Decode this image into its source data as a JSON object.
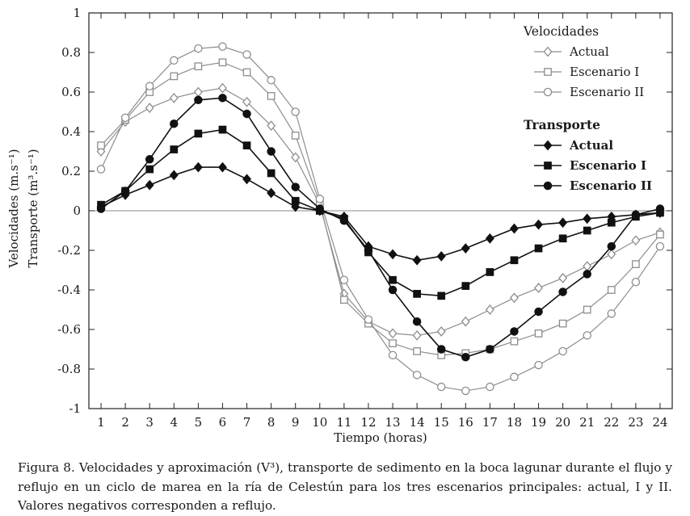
{
  "caption": "Figura 8. Velocidades y aproximación (V³), transporte de sedimento en la boca lagunar durante el flujo y reflujo en un ciclo de marea en la ría de Celestún para los tres escenarios principales: actual, I y II. Valores negativos corresponden a reflujo.",
  "chart_data": {
    "type": "line",
    "title": "",
    "xlabel": "Tiempo (horas)",
    "ylabel": [
      "Velocidades (m.s⁻¹)",
      "Transporte (m³.s⁻¹)"
    ],
    "x": [
      1,
      2,
      3,
      4,
      5,
      6,
      7,
      8,
      9,
      10,
      11,
      12,
      13,
      14,
      15,
      16,
      17,
      18,
      19,
      20,
      21,
      22,
      23,
      24
    ],
    "xlim": [
      0.5,
      24.5
    ],
    "ylim": [
      -1,
      1
    ],
    "yticks": [
      1,
      0.8,
      0.6,
      0.4,
      0.2,
      0,
      -0.2,
      -0.4,
      -0.6,
      -0.8,
      -1
    ],
    "ytick_labels": [
      "1",
      "0.8",
      "0.6",
      "0.4",
      "0.2",
      "0",
      "-0.2",
      "-0.4",
      "-0.6",
      "-0.8",
      "-1"
    ],
    "grid": false,
    "zero_line": true,
    "colors": {
      "velocidades": "#8d8d8d",
      "transporte": "#111111",
      "zero_line": "#8a8a8a",
      "axis": "#222222"
    },
    "legend": {
      "position": "top-right",
      "groups": [
        {
          "header": "Velocidades",
          "style": "open",
          "items": [
            {
              "label": "Actual",
              "marker": "diamond"
            },
            {
              "label": "Escenario I",
              "marker": "square"
            },
            {
              "label": "Escenario II",
              "marker": "circle"
            }
          ]
        },
        {
          "header": "Transporte",
          "style": "filled",
          "items": [
            {
              "label": "Actual",
              "marker": "diamond"
            },
            {
              "label": "Escenario I",
              "marker": "square"
            },
            {
              "label": "Escenario II",
              "marker": "circle"
            }
          ]
        }
      ]
    },
    "series": [
      {
        "group": "Velocidades",
        "name": "Actual",
        "marker": "diamond",
        "fill": "open",
        "values": [
          0.3,
          0.45,
          0.52,
          0.57,
          0.6,
          0.62,
          0.55,
          0.43,
          0.27,
          0.03,
          -0.42,
          -0.56,
          -0.62,
          -0.63,
          -0.61,
          -0.56,
          -0.5,
          -0.44,
          -0.39,
          -0.34,
          -0.28,
          -0.22,
          -0.15,
          -0.11
        ]
      },
      {
        "group": "Velocidades",
        "name": "Escenario I",
        "marker": "square",
        "fill": "open",
        "values": [
          0.33,
          0.46,
          0.6,
          0.68,
          0.73,
          0.75,
          0.7,
          0.58,
          0.38,
          0.04,
          -0.45,
          -0.57,
          -0.67,
          -0.71,
          -0.73,
          -0.72,
          -0.7,
          -0.66,
          -0.62,
          -0.57,
          -0.5,
          -0.4,
          -0.27,
          -0.12
        ]
      },
      {
        "group": "Velocidades",
        "name": "Escenario II",
        "marker": "circle",
        "fill": "open",
        "values": [
          0.21,
          0.47,
          0.63,
          0.76,
          0.82,
          0.83,
          0.79,
          0.66,
          0.5,
          0.06,
          -0.35,
          -0.55,
          -0.73,
          -0.83,
          -0.89,
          -0.91,
          -0.89,
          -0.84,
          -0.78,
          -0.71,
          -0.63,
          -0.52,
          -0.36,
          -0.18
        ]
      },
      {
        "group": "Transporte",
        "name": "Actual",
        "marker": "diamond",
        "fill": "filled",
        "values": [
          0.02,
          0.08,
          0.13,
          0.18,
          0.22,
          0.22,
          0.16,
          0.09,
          0.02,
          0.0,
          -0.03,
          -0.18,
          -0.22,
          -0.25,
          -0.23,
          -0.19,
          -0.14,
          -0.09,
          -0.07,
          -0.06,
          -0.04,
          -0.03,
          -0.02,
          -0.01
        ]
      },
      {
        "group": "Transporte",
        "name": "Escenario I",
        "marker": "square",
        "fill": "filled",
        "values": [
          0.03,
          0.1,
          0.21,
          0.31,
          0.39,
          0.41,
          0.33,
          0.19,
          0.05,
          0.0,
          -0.04,
          -0.21,
          -0.35,
          -0.42,
          -0.43,
          -0.38,
          -0.31,
          -0.25,
          -0.19,
          -0.14,
          -0.1,
          -0.06,
          -0.03,
          -0.01
        ]
      },
      {
        "group": "Transporte",
        "name": "Escenario II",
        "marker": "circle",
        "fill": "filled",
        "values": [
          0.01,
          0.1,
          0.26,
          0.44,
          0.56,
          0.57,
          0.49,
          0.3,
          0.12,
          0.01,
          -0.05,
          -0.2,
          -0.4,
          -0.56,
          -0.7,
          -0.74,
          -0.7,
          -0.61,
          -0.51,
          -0.41,
          -0.32,
          -0.18,
          -0.02,
          0.01
        ]
      }
    ]
  }
}
